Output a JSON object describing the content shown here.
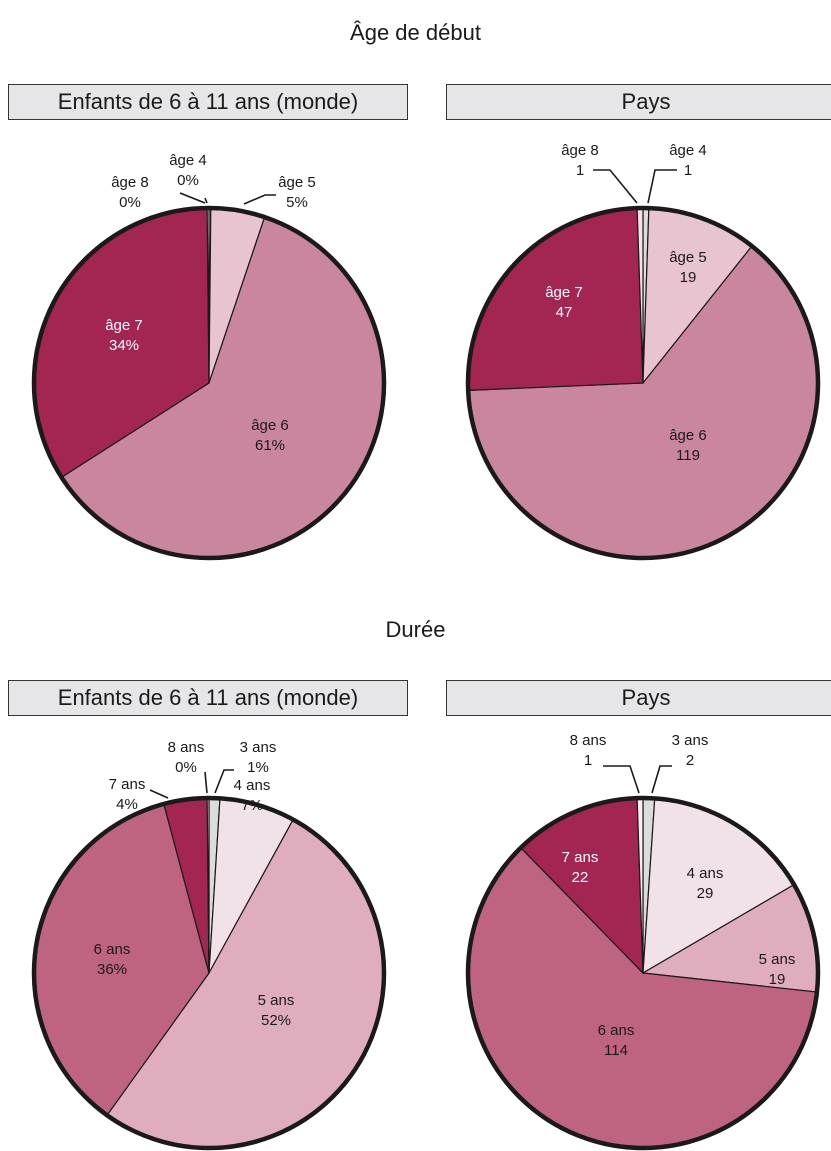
{
  "sections": [
    {
      "title": "Âge de début"
    },
    {
      "title": "Durée"
    }
  ],
  "chart_data": [
    {
      "type": "pie",
      "section": "Âge de début",
      "title": "Enfants de 6 à 11 ans (monde)",
      "unit": "%",
      "slices": [
        {
          "label": "âge 4",
          "value": 0,
          "value_label": "0%",
          "color": "#dcdcdc"
        },
        {
          "label": "âge 5",
          "value": 5,
          "value_label": "5%",
          "color": "#e8c4d1"
        },
        {
          "label": "âge 6",
          "value": 61,
          "value_label": "61%",
          "color": "#cb869f"
        },
        {
          "label": "âge 7",
          "value": 34,
          "value_label": "34%",
          "color": "#a32552"
        },
        {
          "label": "âge 8",
          "value": 0,
          "value_label": "0%",
          "color": "#f2e2e8"
        }
      ]
    },
    {
      "type": "pie",
      "section": "Âge de début",
      "title": "Pays",
      "slices": [
        {
          "label": "âge 4",
          "value": 1,
          "value_label": "1",
          "color": "#dcdcdc"
        },
        {
          "label": "âge 5",
          "value": 19,
          "value_label": "19",
          "color": "#e8c4d1"
        },
        {
          "label": "âge 6",
          "value": 119,
          "value_label": "119",
          "color": "#cb869f"
        },
        {
          "label": "âge 7",
          "value": 47,
          "value_label": "47",
          "color": "#a32552"
        },
        {
          "label": "âge 8",
          "value": 1,
          "value_label": "1",
          "color": "#f2e2e8"
        }
      ]
    },
    {
      "type": "pie",
      "section": "Durée",
      "title": "Enfants de 6 à 11 ans (monde)",
      "unit": "%",
      "slices": [
        {
          "label": "3 ans",
          "value": 1,
          "value_label": "1%",
          "color": "#dcdcdc"
        },
        {
          "label": "4 ans",
          "value": 7,
          "value_label": "7%",
          "color": "#f1e1e8"
        },
        {
          "label": "5 ans",
          "value": 52,
          "value_label": "52%",
          "color": "#e0adbe"
        },
        {
          "label": "6 ans",
          "value": 36,
          "value_label": "36%",
          "color": "#be6480"
        },
        {
          "label": "7 ans",
          "value": 4,
          "value_label": "4%",
          "color": "#a32552"
        },
        {
          "label": "8 ans",
          "value": 0,
          "value_label": "0%",
          "color": "#f7eef2"
        }
      ]
    },
    {
      "type": "pie",
      "section": "Durée",
      "title": "Pays",
      "slices": [
        {
          "label": "3 ans",
          "value": 2,
          "value_label": "2",
          "color": "#dcdcdc"
        },
        {
          "label": "4 ans",
          "value": 29,
          "value_label": "29",
          "color": "#f1e1e8"
        },
        {
          "label": "5 ans",
          "value": 19,
          "value_label": "19",
          "color": "#e0adbe"
        },
        {
          "label": "6 ans",
          "value": 114,
          "value_label": "114",
          "color": "#be6480"
        },
        {
          "label": "7 ans",
          "value": 22,
          "value_label": "22",
          "color": "#a32552"
        },
        {
          "label": "8 ans",
          "value": 1,
          "value_label": "1",
          "color": "#f7eef2"
        }
      ]
    }
  ]
}
